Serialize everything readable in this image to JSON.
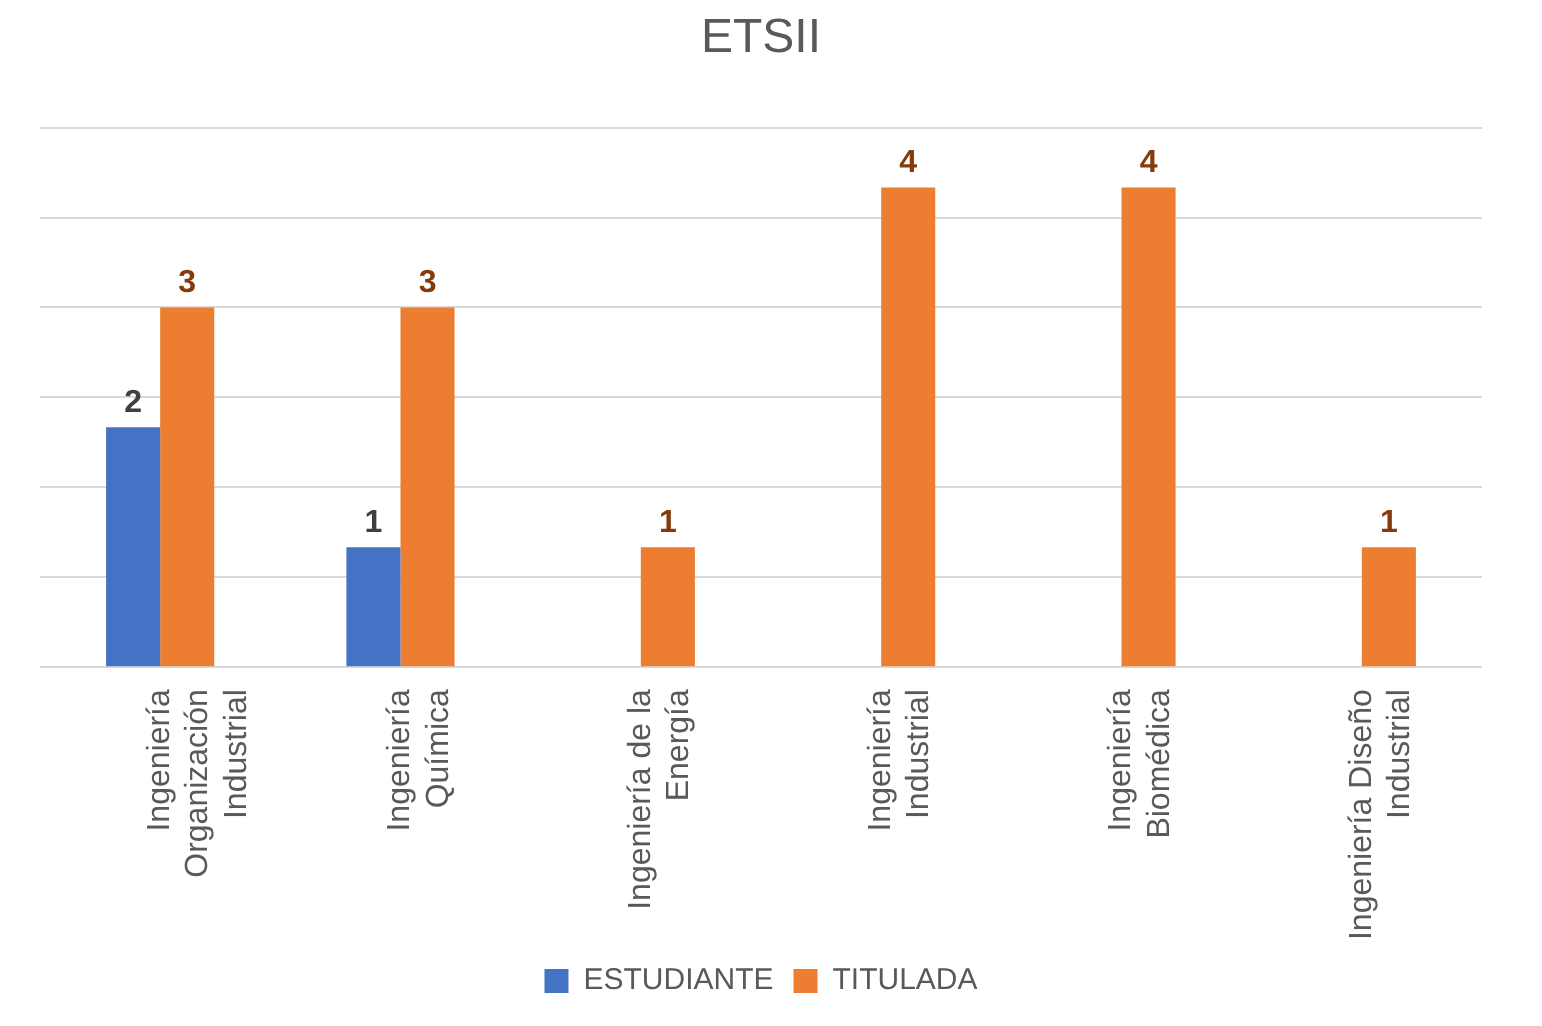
{
  "chart_data": {
    "type": "bar",
    "title": "ETSII",
    "categories": [
      "Ingeniería Organización Industrial",
      "Ingeniería Química",
      "Ingeniería de la Energía",
      "Ingeniería Industrial",
      "Ingeniería Biomédica",
      "Ingeniería Diseño Industrial"
    ],
    "series": [
      {
        "name": "ESTUDIANTE",
        "color": "#4472c4",
        "values": [
          2,
          1,
          null,
          null,
          null,
          null
        ]
      },
      {
        "name": "TITULADA",
        "color": "#ed7d31",
        "values": [
          3,
          3,
          1,
          4,
          4,
          1
        ]
      }
    ],
    "ylim": [
      0,
      4.5
    ],
    "yticks": [
      {
        "value": 0,
        "label": null
      },
      {
        "value": 0.75,
        "label": null
      },
      {
        "value": 1.5,
        "label": null
      },
      {
        "value": 2.25,
        "label": null
      },
      {
        "value": 3,
        "label": null
      },
      {
        "value": 3.75,
        "label": null
      },
      {
        "value": 4.5,
        "label": null
      }
    ],
    "tick_labels": "x",
    "grid": "y",
    "legend": "bottom",
    "data_labels": true
  }
}
